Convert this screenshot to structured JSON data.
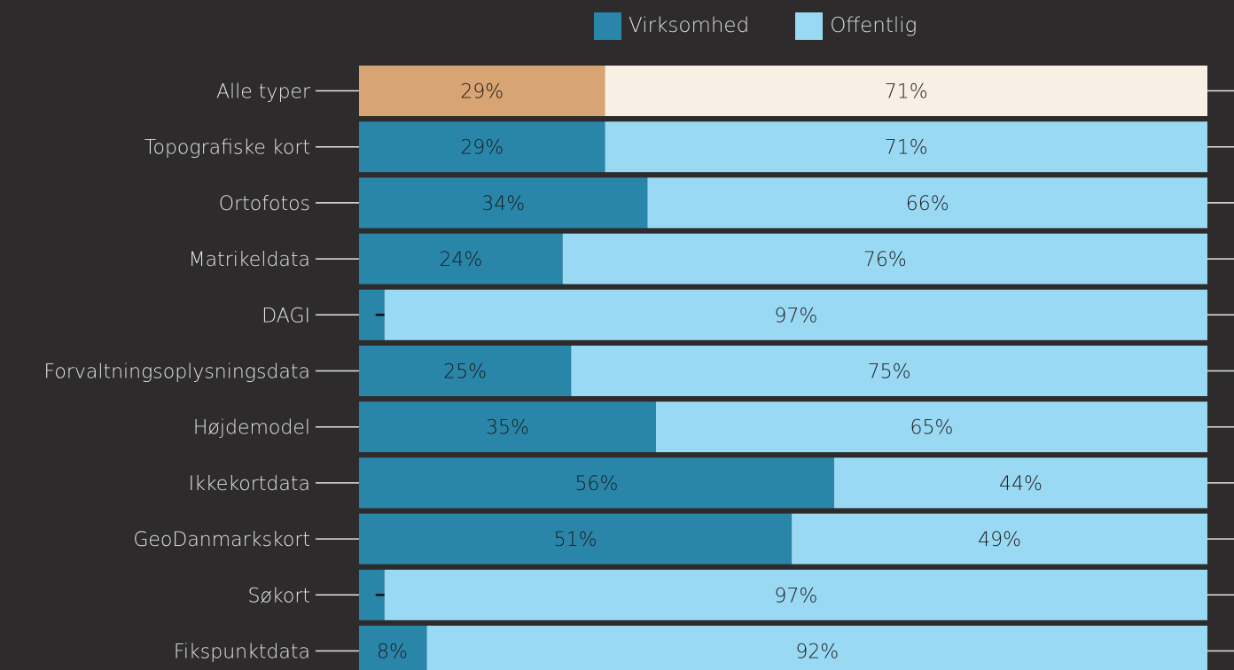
{
  "chart_data": {
    "type": "bar",
    "orientation": "horizontal",
    "stacked": true,
    "percent": true,
    "title": "",
    "xlabel": "",
    "ylabel": "",
    "xlim": [
      0,
      100
    ],
    "grid": false,
    "legend_position": "top-center",
    "categories": [
      "Alle typer",
      "Topografiske kort",
      "Ortofotos",
      "Matrikeldata",
      "DAGI",
      "Forvaltningsoplysningsdata",
      "Højdemodel",
      "Ikkekortdata",
      "GeoDanmarkskort",
      "Søkort",
      "Fikspunktdata"
    ],
    "series": [
      {
        "name": "Virksomhed",
        "color": "#2a86a8",
        "values": [
          29,
          29,
          34,
          24,
          3,
          25,
          35,
          56,
          51,
          3,
          8
        ]
      },
      {
        "name": "Offentlig",
        "color": "#9ad9f3",
        "values": [
          71,
          71,
          66,
          76,
          97,
          75,
          65,
          44,
          49,
          97,
          92
        ]
      }
    ],
    "value_labels": [
      [
        "29%",
        "71%"
      ],
      [
        "29%",
        "71%"
      ],
      [
        "34%",
        "66%"
      ],
      [
        "24%",
        "76%"
      ],
      [
        "3%",
        "97%"
      ],
      [
        "25%",
        "75%"
      ],
      [
        "35%",
        "65%"
      ],
      [
        "56%",
        "44%"
      ],
      [
        "51%",
        "49%"
      ],
      [
        "3%",
        "97%"
      ],
      [
        "8%",
        "92%"
      ]
    ],
    "highlight": {
      "category": "Alle typer",
      "colors": [
        "#d8a473",
        "#f8efe5"
      ]
    }
  }
}
